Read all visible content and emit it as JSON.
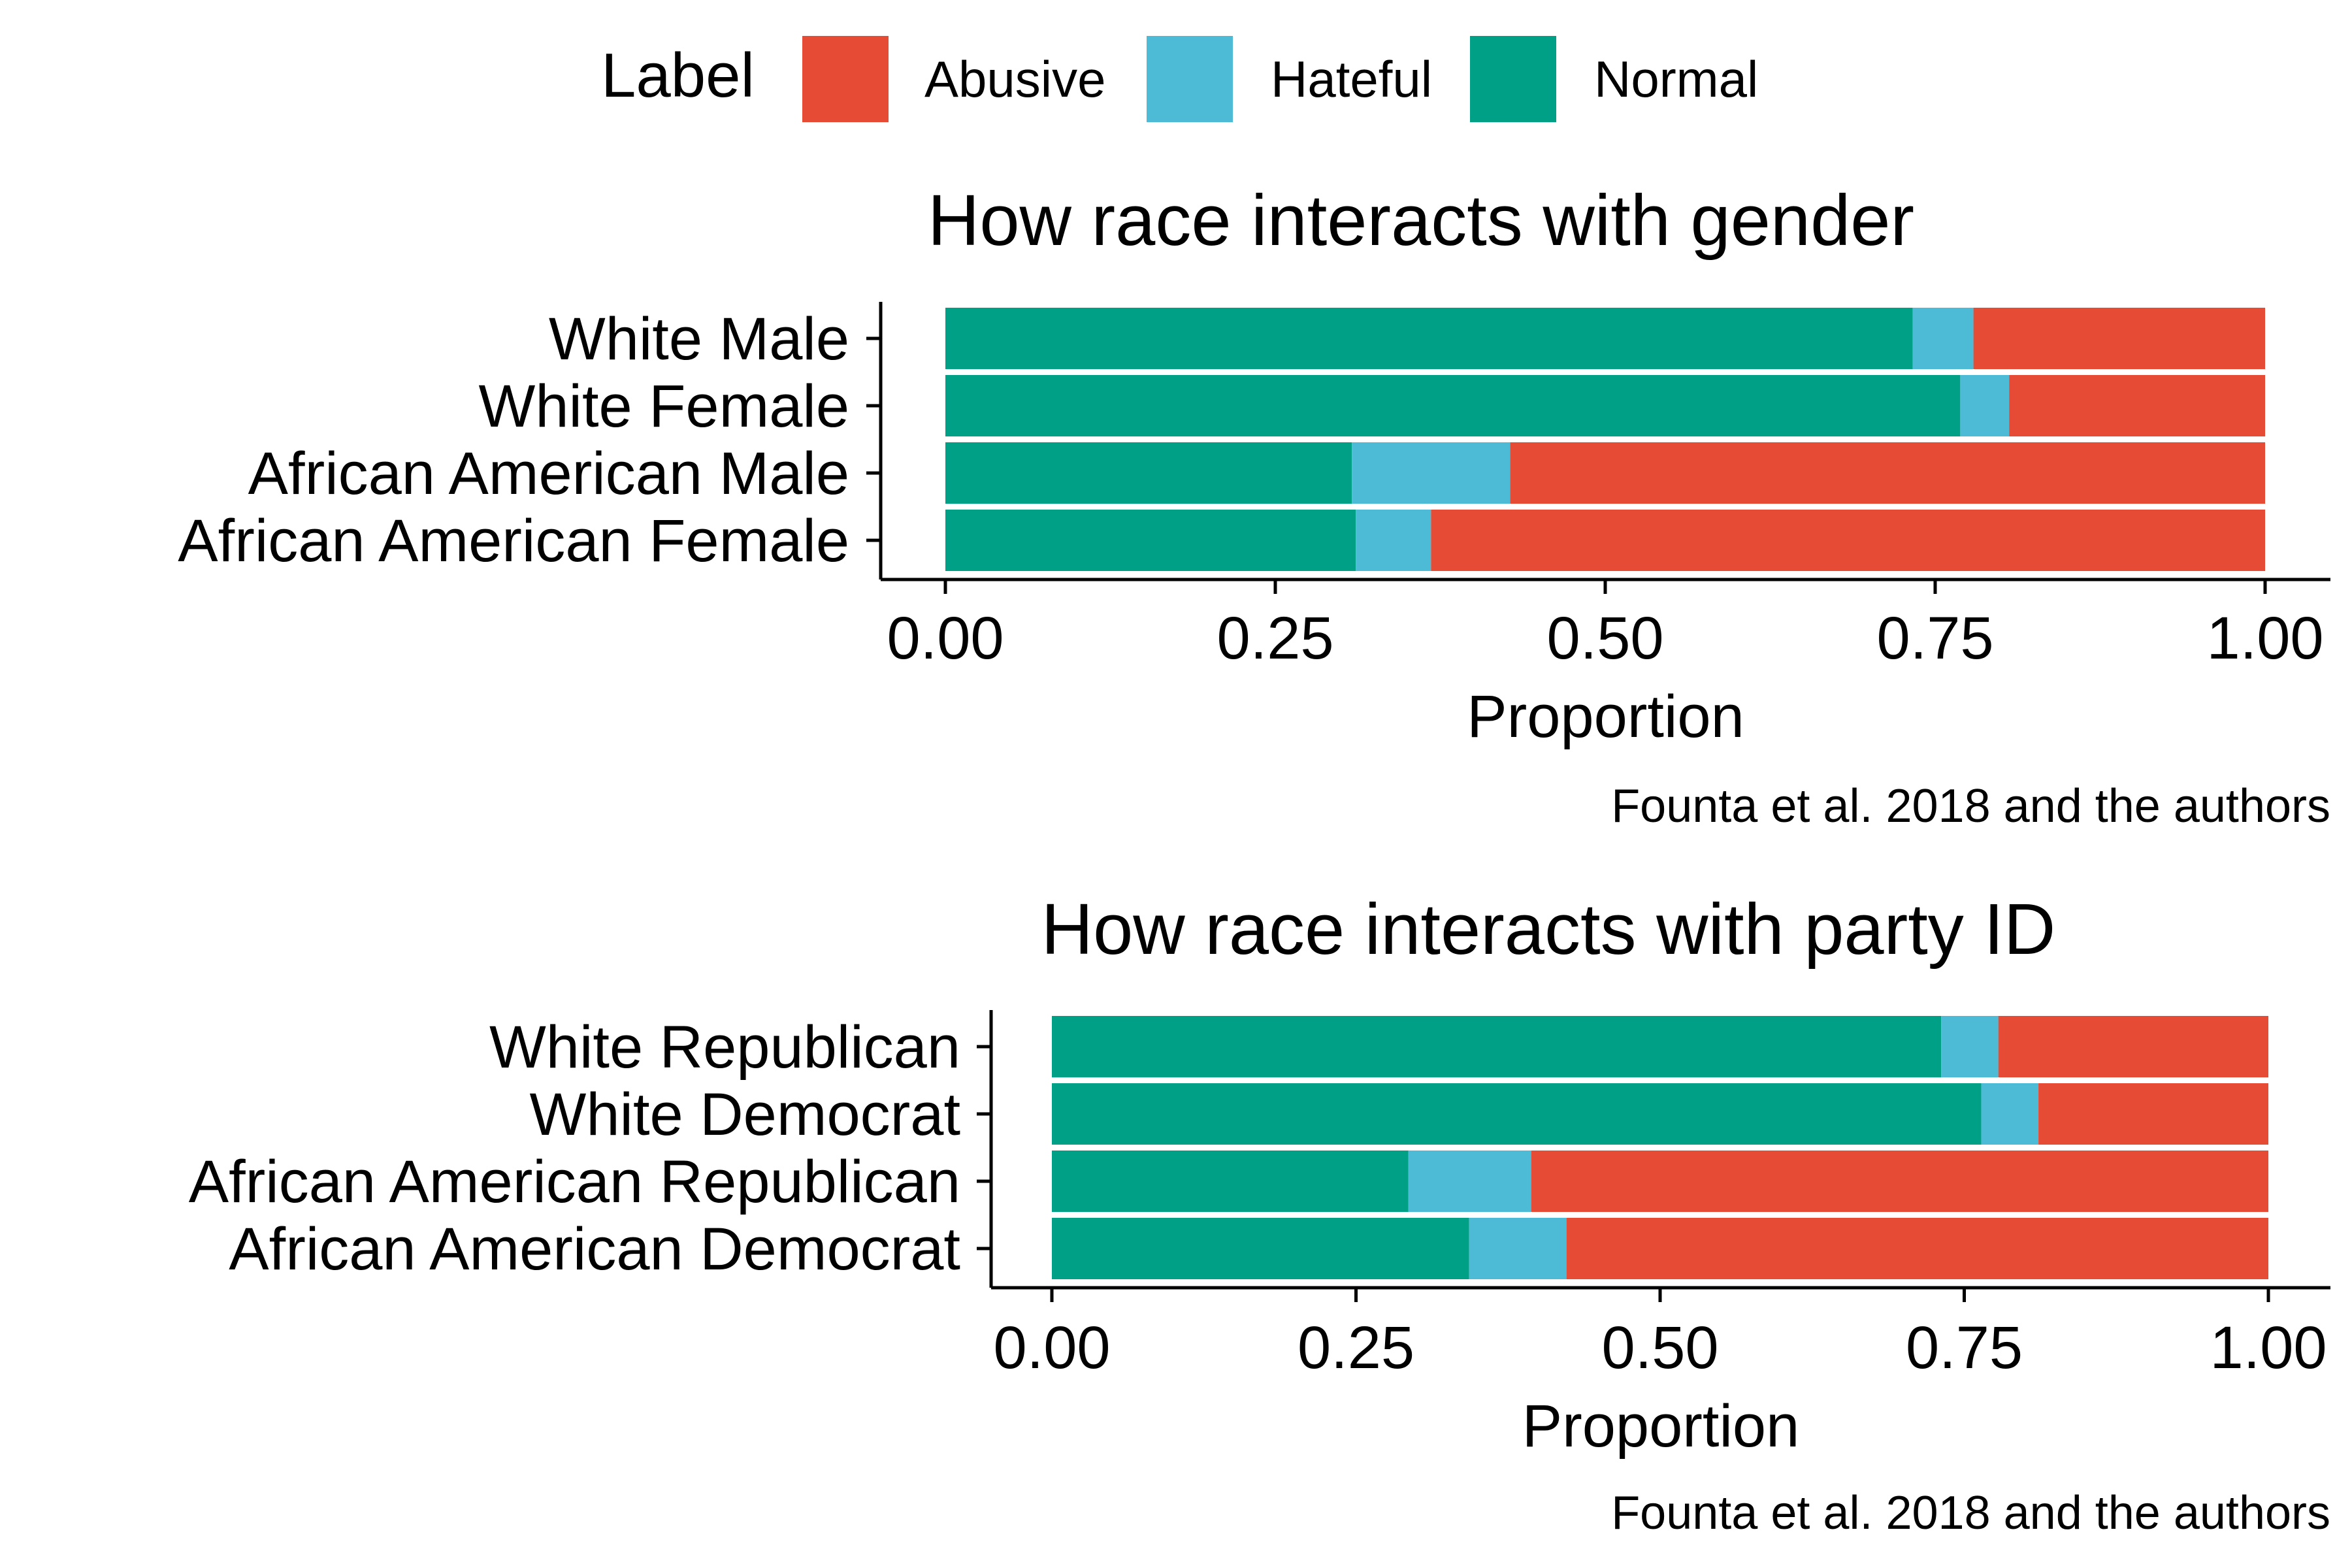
{
  "legend": {
    "title": "Label",
    "items": [
      {
        "name": "Abusive",
        "color": "#E64B35"
      },
      {
        "name": "Hateful",
        "color": "#4DBBD5"
      },
      {
        "name": "Normal",
        "color": "#00A087"
      }
    ]
  },
  "chart_data": [
    {
      "type": "bar",
      "orientation": "horizontal",
      "stacked": true,
      "title": "How race interacts with gender",
      "xlabel": "Proportion",
      "caption": "Founta et al. 2018 and the authors",
      "xlim": [
        0,
        1
      ],
      "xticks": [
        "0.00",
        "0.25",
        "0.50",
        "0.75",
        "1.00"
      ],
      "categories": [
        "White Male",
        "White Female",
        "African American Male",
        "African American Female"
      ],
      "series": [
        {
          "name": "Normal",
          "color": "#00A087",
          "values": [
            0.733,
            0.769,
            0.308,
            0.311
          ]
        },
        {
          "name": "Hateful",
          "color": "#4DBBD5",
          "values": [
            0.046,
            0.037,
            0.12,
            0.057
          ]
        },
        {
          "name": "Abusive",
          "color": "#E64B35",
          "values": [
            0.221,
            0.194,
            0.572,
            0.632
          ]
        }
      ]
    },
    {
      "type": "bar",
      "orientation": "horizontal",
      "stacked": true,
      "title": "How race interacts with party ID",
      "xlabel": "Proportion",
      "caption": "Founta et al. 2018 and the authors",
      "xlim": [
        0,
        1
      ],
      "xticks": [
        "0.00",
        "0.25",
        "0.50",
        "0.75",
        "1.00"
      ],
      "categories": [
        "White Republican",
        "White Democrat",
        "African American Republican",
        "African American Democrat"
      ],
      "series": [
        {
          "name": "Normal",
          "color": "#00A087",
          "values": [
            0.731,
            0.764,
            0.293,
            0.343
          ]
        },
        {
          "name": "Hateful",
          "color": "#4DBBD5",
          "values": [
            0.047,
            0.047,
            0.101,
            0.08
          ]
        },
        {
          "name": "Abusive",
          "color": "#E64B35",
          "values": [
            0.222,
            0.189,
            0.606,
            0.577
          ]
        }
      ]
    }
  ]
}
